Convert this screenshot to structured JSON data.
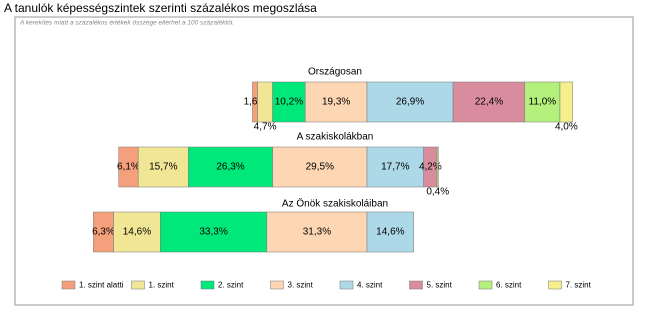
{
  "chart_data": {
    "type": "bar",
    "orientation": "horizontal",
    "stacked": true,
    "title": "A tanulók képességszintek szerinti százalékos megoszlása",
    "subtitle": "A kerekítés miatt a százalékos értékek összege eltérhet a 100 százaléktól.",
    "categories": [
      "Országosan",
      "A szakiskolákban",
      "Az Önök szakiskoláiban"
    ],
    "series": [
      {
        "name": "1. szint alatti",
        "color": "#f5a07c",
        "values": [
          1.6,
          6.1,
          6.3
        ],
        "value_labels": [
          "1,6%",
          "6,1%",
          "6,3%"
        ]
      },
      {
        "name": "1. szint",
        "color": "#f0e696",
        "values": [
          4.7,
          15.7,
          14.6
        ],
        "value_labels": [
          "4,7%",
          "15,7%",
          "14,6%"
        ]
      },
      {
        "name": "2. szint",
        "color": "#00e87a",
        "values": [
          10.2,
          26.3,
          33.3
        ],
        "value_labels": [
          "10,2%",
          "26,3%",
          "33,3%"
        ]
      },
      {
        "name": "3. szint",
        "color": "#fdd6b4",
        "values": [
          19.3,
          29.5,
          31.3
        ],
        "value_labels": [
          "19,3%",
          "29,5%",
          "31,3%"
        ]
      },
      {
        "name": "4. szint",
        "color": "#acd8e8",
        "values": [
          26.9,
          17.7,
          14.6
        ],
        "value_labels": [
          "26,9%",
          "17,7%",
          "14,6%"
        ]
      },
      {
        "name": "5. szint",
        "color": "#d98c9e",
        "values": [
          22.4,
          4.2,
          null
        ],
        "value_labels": [
          "22,4%",
          "4,2%",
          null
        ]
      },
      {
        "name": "6. szint",
        "color": "#b4f07c",
        "values": [
          11.0,
          0.4,
          null
        ],
        "value_labels": [
          "11,0%",
          "0,4%",
          null
        ]
      },
      {
        "name": "7. szint",
        "color": "#f5f08c",
        "values": [
          4.0,
          null,
          null
        ],
        "value_labels": [
          "4,0%",
          null,
          null
        ]
      }
    ],
    "legend": "bottom"
  }
}
